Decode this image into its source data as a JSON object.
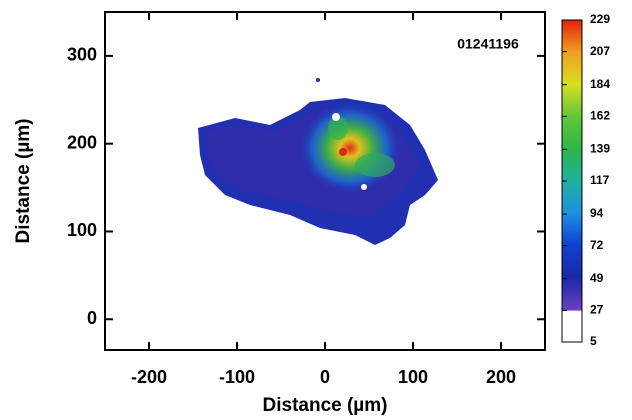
{
  "chart_data": {
    "type": "heatmap",
    "annotation": "01241196",
    "xlabel": "Distance (µm)",
    "ylabel": "Distance (µm)",
    "xlim": [
      -250,
      250
    ],
    "ylim": [
      -35,
      350
    ],
    "xticks": [
      -200,
      -100,
      0,
      100,
      200
    ],
    "yticks": [
      0,
      100,
      200,
      300
    ],
    "colorbar": {
      "lim": [
        5,
        229
      ],
      "ticks": [
        5,
        27,
        49,
        72,
        94,
        117,
        139,
        162,
        184,
        207,
        229
      ]
    }
  }
}
